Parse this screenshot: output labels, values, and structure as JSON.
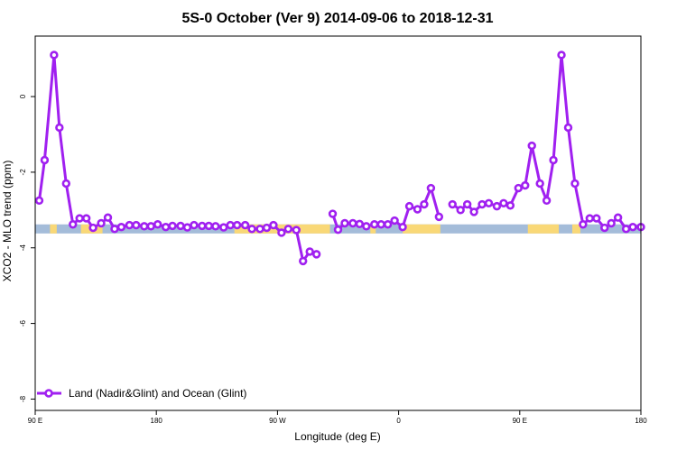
{
  "chart_data": {
    "type": "line",
    "title": "5S-0 October (Ver 9)   2014-09-06 to 2018-12-31",
    "xlabel": "Longitude (deg E)",
    "ylabel": "XCO2 - MLO trend (ppm)",
    "x_ticks": [
      {
        "pos": 90,
        "label": "90 E"
      },
      {
        "pos": 180,
        "label": "180"
      },
      {
        "pos": 270,
        "label": "90 W"
      },
      {
        "pos": 360,
        "label": "0"
      },
      {
        "pos": 450,
        "label": "90 E"
      },
      {
        "pos": 540,
        "label": "180"
      }
    ],
    "y_ticks": [
      {
        "value": 0,
        "label": "0"
      },
      {
        "value": -2,
        "label": "-2"
      },
      {
        "value": -4,
        "label": "-4"
      },
      {
        "value": -6,
        "label": "-6"
      },
      {
        "value": -8,
        "label": "-8"
      }
    ],
    "xlim": [
      90,
      540
    ],
    "ylim": [
      -8.3,
      1.6
    ],
    "grid": false,
    "legend_position": "bottom-left",
    "land_band": {
      "y_range": [
        -3.62,
        -3.38
      ],
      "ocean_color": "#a4bcd9",
      "land_color": "#f9d877",
      "land_segments": [
        [
          101,
          106
        ],
        [
          124,
          140
        ],
        [
          238,
          309
        ],
        [
          339,
          343
        ],
        [
          363,
          391
        ],
        [
          456,
          479
        ],
        [
          489,
          495
        ]
      ]
    },
    "series": [
      {
        "name": "Land (Nadir&Glint) and Ocean (Glint)",
        "color": "#a020f0",
        "segments": [
          [
            [
              93,
              -2.75
            ],
            [
              97,
              -1.68
            ],
            [
              104,
              1.1
            ],
            [
              108,
              -0.82
            ],
            [
              113,
              -2.3
            ],
            [
              118,
              -3.38
            ],
            [
              123,
              -3.22
            ],
            [
              128,
              -3.22
            ],
            [
              133,
              -3.47
            ],
            [
              139,
              -3.35
            ],
            [
              144,
              -3.2
            ],
            [
              149,
              -3.5
            ],
            [
              154,
              -3.45
            ],
            [
              160,
              -3.4
            ],
            [
              165,
              -3.4
            ],
            [
              171,
              -3.43
            ],
            [
              176,
              -3.43
            ],
            [
              181,
              -3.38
            ],
            [
              187,
              -3.45
            ],
            [
              192,
              -3.42
            ],
            [
              198,
              -3.42
            ],
            [
              203,
              -3.46
            ],
            [
              208,
              -3.4
            ],
            [
              214,
              -3.42
            ],
            [
              219,
              -3.42
            ],
            [
              224,
              -3.43
            ],
            [
              230,
              -3.46
            ],
            [
              235,
              -3.4
            ],
            [
              240,
              -3.4
            ],
            [
              246,
              -3.4
            ],
            [
              251,
              -3.5
            ],
            [
              257,
              -3.5
            ],
            [
              262,
              -3.47
            ],
            [
              267,
              -3.4
            ],
            [
              273,
              -3.6
            ],
            [
              278,
              -3.5
            ],
            [
              284,
              -3.53
            ],
            [
              289,
              -4.35
            ],
            [
              294,
              -4.1
            ],
            [
              299,
              -4.17
            ]
          ],
          [
            [
              311,
              -3.1
            ],
            [
              315,
              -3.52
            ],
            [
              320,
              -3.35
            ],
            [
              326,
              -3.35
            ],
            [
              331,
              -3.37
            ],
            [
              336,
              -3.43
            ],
            [
              342,
              -3.38
            ],
            [
              347,
              -3.38
            ],
            [
              352,
              -3.38
            ],
            [
              357,
              -3.28
            ],
            [
              363,
              -3.45
            ],
            [
              368,
              -2.9
            ],
            [
              374,
              -2.98
            ],
            [
              379,
              -2.85
            ],
            [
              384,
              -2.42
            ],
            [
              390,
              -3.18
            ]
          ],
          [
            [
              400,
              -2.85
            ],
            [
              406,
              -3.0
            ],
            [
              411,
              -2.85
            ],
            [
              416,
              -3.05
            ],
            [
              422,
              -2.85
            ],
            [
              427,
              -2.82
            ],
            [
              433,
              -2.9
            ],
            [
              438,
              -2.82
            ],
            [
              443,
              -2.88
            ],
            [
              449,
              -2.42
            ],
            [
              454,
              -2.35
            ],
            [
              459,
              -1.3
            ],
            [
              465,
              -2.3
            ],
            [
              470,
              -2.75
            ],
            [
              475,
              -1.68
            ],
            [
              481,
              1.1
            ],
            [
              486,
              -0.82
            ],
            [
              491,
              -2.3
            ],
            [
              497,
              -3.38
            ],
            [
              502,
              -3.22
            ],
            [
              507,
              -3.22
            ],
            [
              513,
              -3.47
            ],
            [
              518,
              -3.35
            ],
            [
              523,
              -3.2
            ],
            [
              529,
              -3.5
            ],
            [
              534,
              -3.45
            ],
            [
              540,
              -3.45
            ]
          ]
        ]
      }
    ]
  }
}
